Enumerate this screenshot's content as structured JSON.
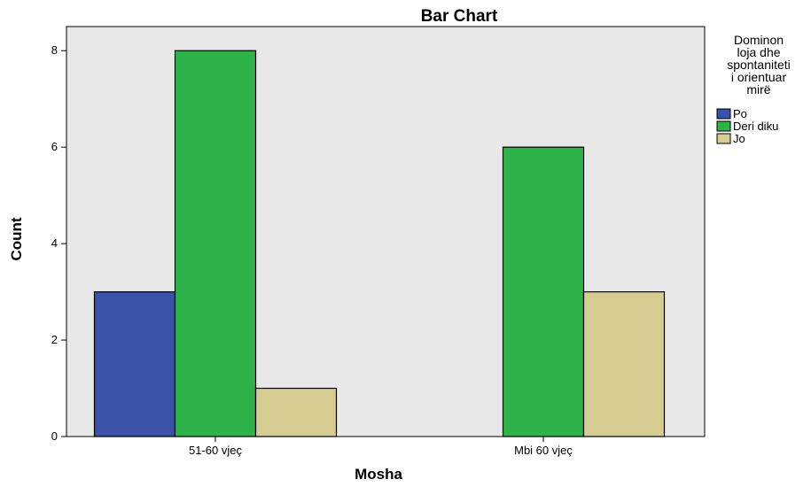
{
  "chart_data": {
    "type": "bar",
    "title": "Bar Chart",
    "xlabel": "Mosha",
    "ylabel": "Count",
    "categories": [
      "51-60 vjeç",
      "Mbi 60 vjeç"
    ],
    "series": [
      {
        "name": "Po",
        "values": [
          3,
          0
        ],
        "color": "#3a52a8"
      },
      {
        "name": "Deri diku",
        "values": [
          8,
          6
        ],
        "color": "#2db34a"
      },
      {
        "name": "Jo",
        "values": [
          1,
          3
        ],
        "color": "#d6cd93"
      }
    ],
    "ylim": [
      0,
      8.5
    ],
    "yticks": [
      0,
      2,
      4,
      6,
      8
    ],
    "legend": {
      "title_lines": [
        "Dominon",
        "loja dhe",
        "spontaniteti",
        "i orientuar",
        "mirë"
      ],
      "position": "right"
    },
    "plot_background": "#e8e8e8",
    "grid": false
  }
}
